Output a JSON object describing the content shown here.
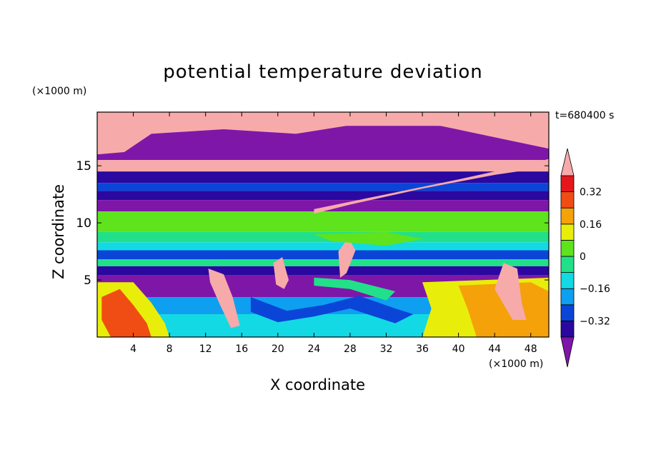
{
  "chart_data": {
    "type": "heatmap",
    "title": "potential temperature deviation",
    "xlabel": "X coordinate",
    "ylabel": "Z coordinate",
    "x_unit_label": "(×1000 m)",
    "y_unit_label": "(×1000 m)",
    "time_label": "t=680400 s",
    "xlim": [
      0,
      50
    ],
    "ylim": [
      0,
      19.7
    ],
    "x_ticks": [
      "4",
      "8",
      "12",
      "16",
      "20",
      "24",
      "28",
      "32",
      "36",
      "40",
      "44",
      "48"
    ],
    "y_ticks": [
      "5",
      "10",
      "15"
    ],
    "colorbar": {
      "labels": [
        "0.32",
        "0.16",
        "0",
        "−0.16",
        "−0.32"
      ],
      "levels": [
        -0.4,
        -0.32,
        -0.24,
        -0.16,
        -0.08,
        0,
        0.08,
        0.16,
        0.24,
        0.32,
        0.4
      ],
      "colors": [
        "#7e17a8",
        "#2b08a0",
        "#0a45d8",
        "#0f9ff0",
        "#13d9e4",
        "#22e089",
        "#5ee31d",
        "#e8ee0a",
        "#f5a10a",
        "#f04d15",
        "#e5161c",
        "#f7aaaa"
      ]
    },
    "bands": [
      {
        "z": [
          18.5,
          19.7
        ],
        "color": "#f7aaaa"
      },
      {
        "z": [
          15.5,
          18.5
        ],
        "color": "#7e17a8"
      },
      {
        "z": [
          14.5,
          15.5
        ],
        "color": "#f7aaaa"
      },
      {
        "z": [
          13.5,
          14.5
        ],
        "color": "#2b08a0"
      },
      {
        "z": [
          12.8,
          13.5
        ],
        "color": "#0a45d8"
      },
      {
        "z": [
          12.0,
          12.8
        ],
        "color": "#2b08a0"
      },
      {
        "z": [
          11.0,
          12.0
        ],
        "color": "#7e17a8"
      },
      {
        "z": [
          9.2,
          11.0
        ],
        "color": "#5ee31d"
      },
      {
        "z": [
          8.3,
          9.2
        ],
        "color": "#22e089"
      },
      {
        "z": [
          7.6,
          8.3
        ],
        "color": "#13d9e4"
      },
      {
        "z": [
          6.8,
          7.6
        ],
        "color": "#0a45d8"
      },
      {
        "z": [
          6.2,
          6.8
        ],
        "color": "#22e089"
      },
      {
        "z": [
          5.4,
          6.2
        ],
        "color": "#2b08a0"
      },
      {
        "z": [
          3.5,
          5.4
        ],
        "color": "#7e17a8"
      },
      {
        "z": [
          2.0,
          3.5
        ],
        "color": "#0f9ff0"
      },
      {
        "z": [
          0,
          2.0
        ],
        "color": "#13d9e4"
      }
    ],
    "features": [
      {
        "name": "upper-plume",
        "color": "#f7aaaa",
        "points": [
          [
            0,
            19.7
          ],
          [
            50,
            19.7
          ],
          [
            50,
            16.5
          ],
          [
            44,
            17.5
          ],
          [
            38,
            18.5
          ],
          [
            30,
            18.8
          ],
          [
            22,
            17.8
          ],
          [
            14,
            18.2
          ],
          [
            6,
            17.8
          ],
          [
            3,
            16.2
          ],
          [
            0,
            16.0
          ]
        ]
      },
      {
        "name": "tilted-plume",
        "color": "#f7aaaa",
        "points": [
          [
            24,
            11.2
          ],
          [
            32,
            12.5
          ],
          [
            40,
            13.8
          ],
          [
            48,
            15.2
          ],
          [
            50,
            15.6
          ],
          [
            50,
            14.9
          ],
          [
            44,
            14.2
          ],
          [
            36,
            13.0
          ],
          [
            28,
            11.6
          ],
          [
            24,
            10.8
          ]
        ]
      },
      {
        "name": "left-warm-region",
        "color": "#e8ee0a",
        "points": [
          [
            0,
            4.8
          ],
          [
            4,
            4.8
          ],
          [
            6,
            3.0
          ],
          [
            7.5,
            1.2
          ],
          [
            8,
            0
          ],
          [
            0,
            0
          ]
        ]
      },
      {
        "name": "left-warm-core",
        "color": "#f04d15",
        "points": [
          [
            0.5,
            3.5
          ],
          [
            2.5,
            4.2
          ],
          [
            4,
            2.8
          ],
          [
            5.5,
            1.2
          ],
          [
            6,
            0
          ],
          [
            1.5,
            0
          ],
          [
            0.5,
            1.5
          ]
        ]
      },
      {
        "name": "right-warm-region",
        "color": "#e8ee0a",
        "points": [
          [
            36,
            4.8
          ],
          [
            50,
            5.2
          ],
          [
            50,
            0
          ],
          [
            36,
            0
          ],
          [
            37,
            2.5
          ]
        ]
      },
      {
        "name": "right-warm-core",
        "color": "#f5a10a",
        "points": [
          [
            40,
            4.5
          ],
          [
            48,
            4.8
          ],
          [
            50,
            4.0
          ],
          [
            50,
            0
          ],
          [
            42,
            0
          ],
          [
            41,
            2.5
          ]
        ]
      },
      {
        "name": "right-plume",
        "color": "#f7aaaa",
        "points": [
          [
            44,
            4.2
          ],
          [
            45,
            6.5
          ],
          [
            46.5,
            6.0
          ],
          [
            47,
            3.0
          ],
          [
            47.5,
            1.5
          ],
          [
            46,
            1.5
          ]
        ]
      },
      {
        "name": "lower-blue-wave",
        "color": "#0a45d8",
        "points": [
          [
            17,
            3.5
          ],
          [
            21,
            2.3
          ],
          [
            25,
            2.8
          ],
          [
            29,
            3.6
          ],
          [
            33,
            2.5
          ],
          [
            35,
            2.0
          ],
          [
            33,
            1.2
          ],
          [
            28,
            2.5
          ],
          [
            24,
            1.8
          ],
          [
            20,
            1.3
          ],
          [
            17,
            2.2
          ]
        ]
      },
      {
        "name": "lower-green-wave",
        "color": "#22e089",
        "points": [
          [
            24,
            4.5
          ],
          [
            28,
            4.2
          ],
          [
            32,
            3.2
          ],
          [
            33,
            4.0
          ],
          [
            28,
            5.0
          ],
          [
            24,
            5.2
          ]
        ]
      },
      {
        "name": "falling-plume-1",
        "color": "#f7aaaa",
        "points": [
          [
            12.3,
            6.0
          ],
          [
            14,
            5.5
          ],
          [
            15,
            3.5
          ],
          [
            15.8,
            1.0
          ],
          [
            14.8,
            0.8
          ],
          [
            13.5,
            3.0
          ],
          [
            12.5,
            4.8
          ]
        ]
      },
      {
        "name": "falling-plume-2",
        "color": "#f7aaaa",
        "points": [
          [
            19.5,
            6.5
          ],
          [
            20.5,
            7.0
          ],
          [
            21.2,
            5.0
          ],
          [
            20.7,
            4.2
          ],
          [
            19.8,
            4.6
          ]
        ]
      },
      {
        "name": "falling-plume-3",
        "color": "#f7aaaa",
        "points": [
          [
            26.7,
            7.5
          ],
          [
            27.8,
            8.7
          ],
          [
            28.6,
            7.6
          ],
          [
            27.6,
            5.6
          ],
          [
            26.9,
            5.2
          ]
        ]
      },
      {
        "name": "green-midband-bulge",
        "color": "#5ee31d",
        "points": [
          [
            24,
            9.0
          ],
          [
            32,
            9.2
          ],
          [
            36,
            8.6
          ],
          [
            32,
            8.0
          ],
          [
            26,
            8.4
          ]
        ]
      }
    ]
  }
}
